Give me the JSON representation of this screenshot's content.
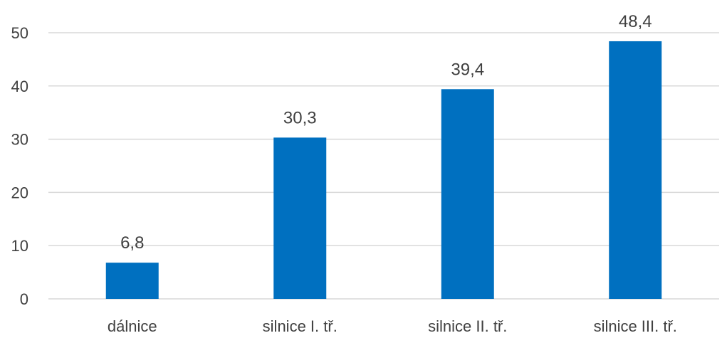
{
  "chart_data": {
    "type": "bar",
    "categories": [
      "dálnice",
      "silnice I. tř.",
      "silnice II. tř.",
      "silnice III. tř."
    ],
    "values": [
      6.8,
      30.3,
      39.4,
      48.4
    ],
    "value_labels": [
      "6,8",
      "30,3",
      "39,4",
      "48,4"
    ],
    "y_ticks": [
      0,
      10,
      20,
      30,
      40,
      50
    ],
    "ylim": [
      0,
      50
    ],
    "grid": true,
    "bar_color": "#0070c0",
    "title": "",
    "xlabel": "",
    "ylabel": ""
  }
}
